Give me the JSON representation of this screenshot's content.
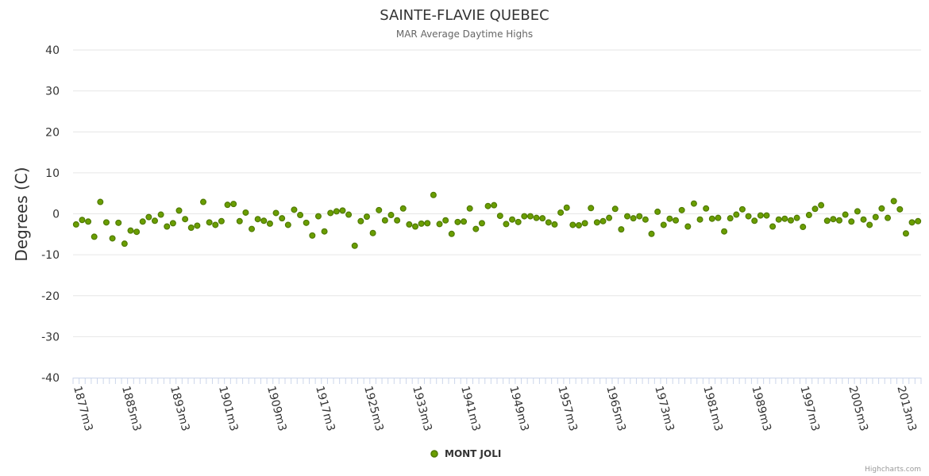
{
  "chart_data": {
    "type": "scatter",
    "title": "SAINTE-FLAVIE QUEBEC",
    "subtitle": "MAR Average Daytime Highs",
    "ylabel": "Degrees (C)",
    "xlabel": "",
    "ylim": [
      -40,
      40
    ],
    "yticks": [
      40,
      30,
      20,
      10,
      0,
      -10,
      -20,
      -30,
      -40
    ],
    "x_start_year": 1877,
    "x_end_year": 2014,
    "x_tick_labels": [
      "1877m3",
      "1885m3",
      "1893m3",
      "1901m3",
      "1909m3",
      "1917m3",
      "1925m3",
      "1933m3",
      "1941m3",
      "1949m3",
      "1957m3",
      "1965m3",
      "1973m3",
      "1981m3",
      "1989m3",
      "1997m3",
      "2005m3",
      "2013m3"
    ],
    "legend_position": "bottom-center",
    "grid": true,
    "series": [
      {
        "name": "MONT JOLI",
        "color": "#6a9e00",
        "values": [
          {
            "x": "1877m3",
            "y": -2.6
          },
          {
            "x": "1878m3",
            "y": -1.5
          },
          {
            "x": "1879m3",
            "y": -1.9
          },
          {
            "x": "1880m3",
            "y": -5.6
          },
          {
            "x": "1881m3",
            "y": 2.9
          },
          {
            "x": "1882m3",
            "y": -2.1
          },
          {
            "x": "1883m3",
            "y": -6.0
          },
          {
            "x": "1884m3",
            "y": -2.2
          },
          {
            "x": "1885m3",
            "y": -7.3
          },
          {
            "x": "1886m3",
            "y": -4.1
          },
          {
            "x": "1887m3",
            "y": -4.4
          },
          {
            "x": "1888m3",
            "y": -1.9
          },
          {
            "x": "1889m3",
            "y": -0.8
          },
          {
            "x": "1890m3",
            "y": -1.7
          },
          {
            "x": "1891m3",
            "y": -0.2
          },
          {
            "x": "1892m3",
            "y": -3.1
          },
          {
            "x": "1893m3",
            "y": -2.3
          },
          {
            "x": "1894m3",
            "y": 0.8
          },
          {
            "x": "1895m3",
            "y": -1.3
          },
          {
            "x": "1896m3",
            "y": -3.4
          },
          {
            "x": "1897m3",
            "y": -2.9
          },
          {
            "x": "1898m3",
            "y": 2.9
          },
          {
            "x": "1899m3",
            "y": -2.1
          },
          {
            "x": "1900m3",
            "y": -2.7
          },
          {
            "x": "1901m3",
            "y": -1.8
          },
          {
            "x": "1902m3",
            "y": 2.2
          },
          {
            "x": "1903m3",
            "y": 2.4
          },
          {
            "x": "1904m3",
            "y": -1.8
          },
          {
            "x": "1905m3",
            "y": 0.3
          },
          {
            "x": "1906m3",
            "y": -3.7
          },
          {
            "x": "1907m3",
            "y": -1.3
          },
          {
            "x": "1908m3",
            "y": -1.7
          },
          {
            "x": "1909m3",
            "y": -2.4
          },
          {
            "x": "1910m3",
            "y": 0.2
          },
          {
            "x": "1911m3",
            "y": -1.1
          },
          {
            "x": "1912m3",
            "y": -2.7
          },
          {
            "x": "1913m3",
            "y": 1.0
          },
          {
            "x": "1914m3",
            "y": -0.3
          },
          {
            "x": "1915m3",
            "y": -2.2
          },
          {
            "x": "1916m3",
            "y": -5.3
          },
          {
            "x": "1917m3",
            "y": -0.6
          },
          {
            "x": "1918m3",
            "y": -4.3
          },
          {
            "x": "1919m3",
            "y": 0.2
          },
          {
            "x": "1920m3",
            "y": 0.6
          },
          {
            "x": "1921m3",
            "y": 0.8
          },
          {
            "x": "1922m3",
            "y": -0.2
          },
          {
            "x": "1923m3",
            "y": -7.8
          },
          {
            "x": "1924m3",
            "y": -1.8
          },
          {
            "x": "1925m3",
            "y": -0.7
          },
          {
            "x": "1926m3",
            "y": -4.7
          },
          {
            "x": "1927m3",
            "y": 0.9
          },
          {
            "x": "1928m3",
            "y": -1.6
          },
          {
            "x": "1929m3",
            "y": -0.3
          },
          {
            "x": "1930m3",
            "y": -1.6
          },
          {
            "x": "1931m3",
            "y": 1.3
          },
          {
            "x": "1932m3",
            "y": -2.6
          },
          {
            "x": "1933m3",
            "y": -3.1
          },
          {
            "x": "1934m3",
            "y": -2.4
          },
          {
            "x": "1935m3",
            "y": -2.3
          },
          {
            "x": "1936m3",
            "y": 4.6
          },
          {
            "x": "1937m3",
            "y": -2.5
          },
          {
            "x": "1938m3",
            "y": -1.6
          },
          {
            "x": "1939m3",
            "y": -4.9
          },
          {
            "x": "1940m3",
            "y": -2.0
          },
          {
            "x": "1941m3",
            "y": -1.9
          },
          {
            "x": "1942m3",
            "y": 1.3
          },
          {
            "x": "1943m3",
            "y": -3.7
          },
          {
            "x": "1944m3",
            "y": -2.3
          },
          {
            "x": "1945m3",
            "y": 1.9
          },
          {
            "x": "1946m3",
            "y": 2.1
          },
          {
            "x": "1947m3",
            "y": -0.5
          },
          {
            "x": "1948m3",
            "y": -2.5
          },
          {
            "x": "1949m3",
            "y": -1.4
          },
          {
            "x": "1950m3",
            "y": -2.0
          },
          {
            "x": "1951m3",
            "y": -0.6
          },
          {
            "x": "1952m3",
            "y": -0.6
          },
          {
            "x": "1953m3",
            "y": -1.0
          },
          {
            "x": "1954m3",
            "y": -1.1
          },
          {
            "x": "1955m3",
            "y": -2.1
          },
          {
            "x": "1956m3",
            "y": -2.6
          },
          {
            "x": "1957m3",
            "y": 0.3
          },
          {
            "x": "1958m3",
            "y": 1.5
          },
          {
            "x": "1959m3",
            "y": -2.7
          },
          {
            "x": "1960m3",
            "y": -2.8
          },
          {
            "x": "1961m3",
            "y": -2.3
          },
          {
            "x": "1962m3",
            "y": 1.4
          },
          {
            "x": "1963m3",
            "y": -2.1
          },
          {
            "x": "1964m3",
            "y": -1.8
          },
          {
            "x": "1965m3",
            "y": -1.0
          },
          {
            "x": "1966m3",
            "y": 1.2
          },
          {
            "x": "1967m3",
            "y": -3.8
          },
          {
            "x": "1968m3",
            "y": -0.6
          },
          {
            "x": "1969m3",
            "y": -1.1
          },
          {
            "x": "1970m3",
            "y": -0.6
          },
          {
            "x": "1971m3",
            "y": -1.4
          },
          {
            "x": "1972m3",
            "y": -4.9
          },
          {
            "x": "1973m3",
            "y": 0.5
          },
          {
            "x": "1974m3",
            "y": -2.7
          },
          {
            "x": "1975m3",
            "y": -1.2
          },
          {
            "x": "1976m3",
            "y": -1.6
          },
          {
            "x": "1977m3",
            "y": 0.9
          },
          {
            "x": "1978m3",
            "y": -3.1
          },
          {
            "x": "1979m3",
            "y": 2.5
          },
          {
            "x": "1980m3",
            "y": -1.4
          },
          {
            "x": "1981m3",
            "y": 1.3
          },
          {
            "x": "1982m3",
            "y": -1.2
          },
          {
            "x": "1983m3",
            "y": -1.0
          },
          {
            "x": "1984m3",
            "y": -4.3
          },
          {
            "x": "1985m3",
            "y": -1.1
          },
          {
            "x": "1986m3",
            "y": -0.2
          },
          {
            "x": "1987m3",
            "y": 1.1
          },
          {
            "x": "1988m3",
            "y": -0.6
          },
          {
            "x": "1989m3",
            "y": -1.7
          },
          {
            "x": "1990m3",
            "y": -0.4
          },
          {
            "x": "1991m3",
            "y": -0.4
          },
          {
            "x": "1992m3",
            "y": -3.1
          },
          {
            "x": "1993m3",
            "y": -1.4
          },
          {
            "x": "1994m3",
            "y": -1.2
          },
          {
            "x": "1995m3",
            "y": -1.6
          },
          {
            "x": "1996m3",
            "y": -1.0
          },
          {
            "x": "1997m3",
            "y": -3.2
          },
          {
            "x": "1998m3",
            "y": -0.3
          },
          {
            "x": "1999m3",
            "y": 1.2
          },
          {
            "x": "2000m3",
            "y": 2.1
          },
          {
            "x": "2001m3",
            "y": -1.7
          },
          {
            "x": "2002m3",
            "y": -1.3
          },
          {
            "x": "2003m3",
            "y": -1.6
          },
          {
            "x": "2004m3",
            "y": -0.2
          },
          {
            "x": "2005m3",
            "y": -1.9
          },
          {
            "x": "2006m3",
            "y": 0.6
          },
          {
            "x": "2007m3",
            "y": -1.4
          },
          {
            "x": "2008m3",
            "y": -2.7
          },
          {
            "x": "2009m3",
            "y": -0.8
          },
          {
            "x": "2010m3",
            "y": 1.3
          },
          {
            "x": "2011m3",
            "y": -1.0
          },
          {
            "x": "2012m3",
            "y": 3.1
          },
          {
            "x": "2013m3",
            "y": 1.1
          },
          {
            "x": "2014m3",
            "y": -4.8
          },
          {
            "x": "2015m3",
            "y": -2.1
          },
          {
            "x": "2016m3",
            "y": -1.8
          }
        ]
      }
    ]
  },
  "credits": "Highcharts.com"
}
